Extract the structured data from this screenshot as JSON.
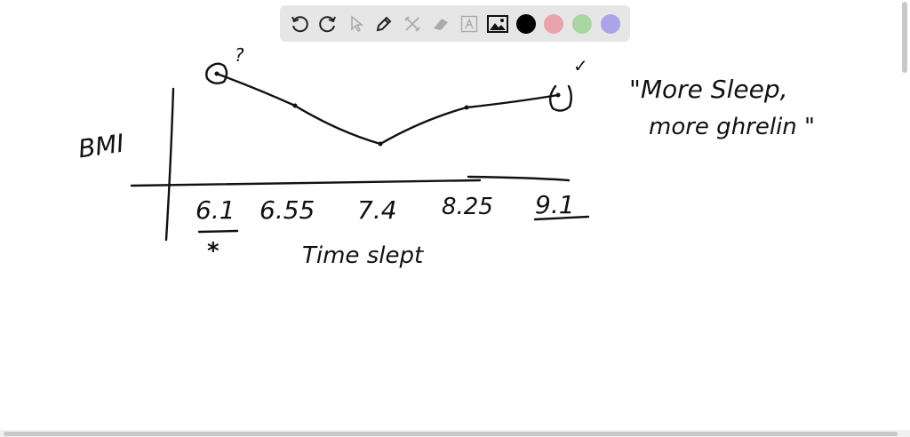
{
  "toolbar": {
    "tools": [
      {
        "name": "undo",
        "icon": "undo-icon",
        "enabled": true
      },
      {
        "name": "redo",
        "icon": "redo-icon",
        "enabled": true
      },
      {
        "name": "select",
        "icon": "pointer-icon",
        "enabled": false
      },
      {
        "name": "pen",
        "icon": "pencil-icon",
        "enabled": true
      },
      {
        "name": "tools",
        "icon": "tools-icon",
        "enabled": false
      },
      {
        "name": "eraser",
        "icon": "eraser-icon",
        "enabled": false
      },
      {
        "name": "text",
        "icon": "text-icon",
        "enabled": false
      },
      {
        "name": "image",
        "icon": "image-icon",
        "enabled": true
      }
    ],
    "colors": [
      "#000000",
      "#e8a3ab",
      "#a8d5a2",
      "#aaa3e8"
    ],
    "selected_color": "#000000"
  },
  "sketch": {
    "y_label": "BMI",
    "x_label": "Time slept",
    "x_ticks": [
      "6.1",
      "6.55",
      "7.4",
      "8.25",
      "9.1"
    ],
    "question_mark": "?",
    "check_mark": "✓",
    "star": "*",
    "note_line1": "\"More Sleep,",
    "note_line2": "more ghrelin \""
  }
}
